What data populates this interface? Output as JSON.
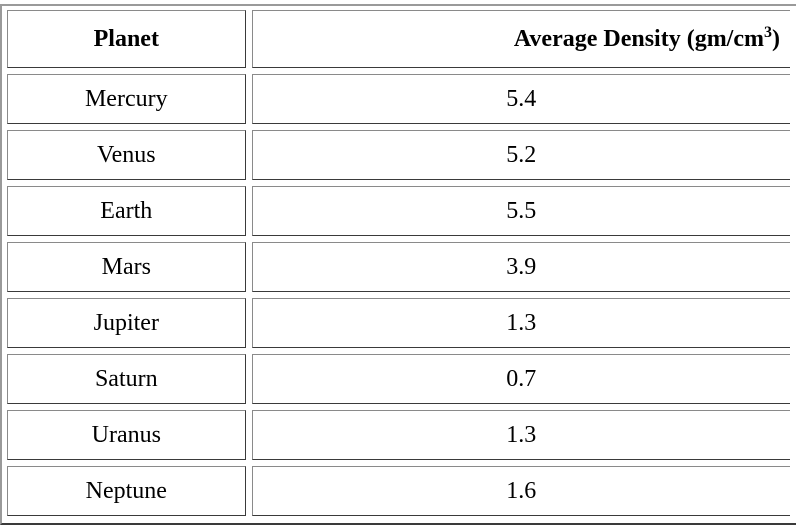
{
  "table": {
    "headers": {
      "planet": "Planet",
      "density_prefix": "Average Density (gm/cm",
      "density_exponent": "3",
      "density_suffix": ")"
    },
    "rows": [
      {
        "planet": "Mercury",
        "density": "5.4"
      },
      {
        "planet": "Venus",
        "density": "5.2"
      },
      {
        "planet": "Earth",
        "density": "5.5"
      },
      {
        "planet": "Mars",
        "density": "3.9"
      },
      {
        "planet": "Jupiter",
        "density": "1.3"
      },
      {
        "planet": "Saturn",
        "density": "0.7"
      },
      {
        "planet": "Uranus",
        "density": "1.3"
      },
      {
        "planet": "Neptune",
        "density": "1.6"
      }
    ]
  }
}
